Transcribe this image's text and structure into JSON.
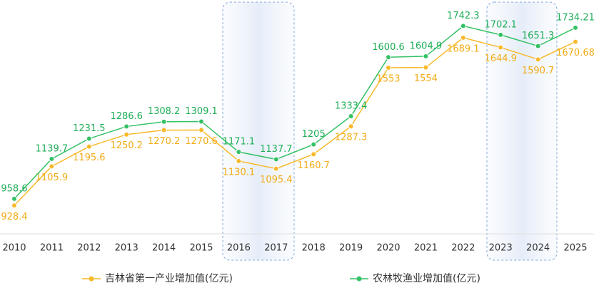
{
  "chart_data": {
    "type": "line",
    "categories": [
      "2010",
      "2011",
      "2012",
      "2013",
      "2014",
      "2015",
      "2016",
      "2017",
      "2018",
      "2019",
      "2020",
      "2021",
      "2022",
      "2023",
      "2024",
      "2025"
    ],
    "series": [
      {
        "name": "吉林省第一产业增加值(亿元)",
        "color": "#f7b92b",
        "values": [
          928.4,
          1105.9,
          1195.6,
          1250.2,
          1270.2,
          1270.6,
          1130.1,
          1095.4,
          1160.7,
          1287.3,
          1553,
          1554,
          1689.1,
          1644.9,
          1590.7,
          1670.68
        ]
      },
      {
        "name": "农林牧渔业增加值(亿元)",
        "color": "#34c165",
        "values": [
          958.6,
          1139.7,
          1231.5,
          1286.6,
          1308.2,
          1309.1,
          1171.1,
          1137.7,
          1205,
          1333.4,
          1600.6,
          1604.9,
          1742.3,
          1702.1,
          1651.3,
          1734.21
        ]
      }
    ],
    "ylim": [
      800,
      1860
    ]
  }
}
